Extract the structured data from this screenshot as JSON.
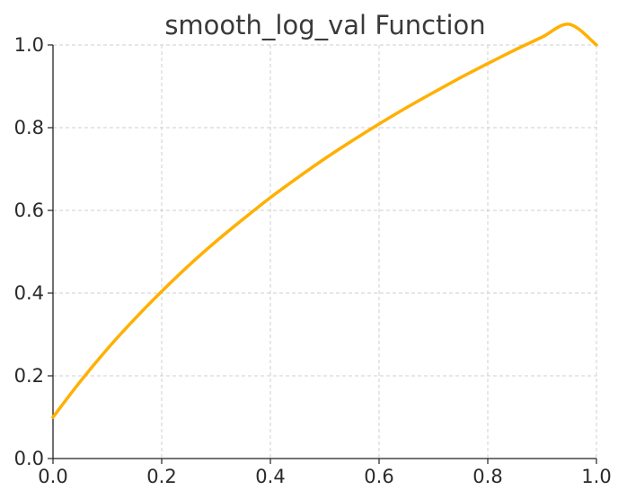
{
  "chart_data": {
    "type": "line",
    "title": "smooth_log_val Function",
    "xlabel": "",
    "ylabel": "",
    "xlim": [
      0.0,
      1.0
    ],
    "ylim": [
      0.0,
      1.0
    ],
    "grid": true,
    "legend": "none",
    "x_ticks": [
      "0.0",
      "0.2",
      "0.4",
      "0.6",
      "0.8",
      "1.0"
    ],
    "y_ticks": [
      "0.0",
      "0.2",
      "0.4",
      "0.6",
      "0.8",
      "1.0"
    ],
    "series": [
      {
        "color": "#FFB000",
        "x": [
          0.0,
          0.05,
          0.1,
          0.15,
          0.2,
          0.25,
          0.3,
          0.35,
          0.4,
          0.45,
          0.5,
          0.55,
          0.6,
          0.65,
          0.7,
          0.75,
          0.8,
          0.85,
          0.9,
          0.95,
          1.0
        ],
        "y": [
          0.1,
          0.186,
          0.265,
          0.337,
          0.404,
          0.467,
          0.525,
          0.579,
          0.631,
          0.679,
          0.725,
          0.768,
          0.809,
          0.848,
          0.885,
          0.921,
          0.955,
          0.988,
          1.019,
          1.05,
          1.0
        ]
      }
    ]
  }
}
